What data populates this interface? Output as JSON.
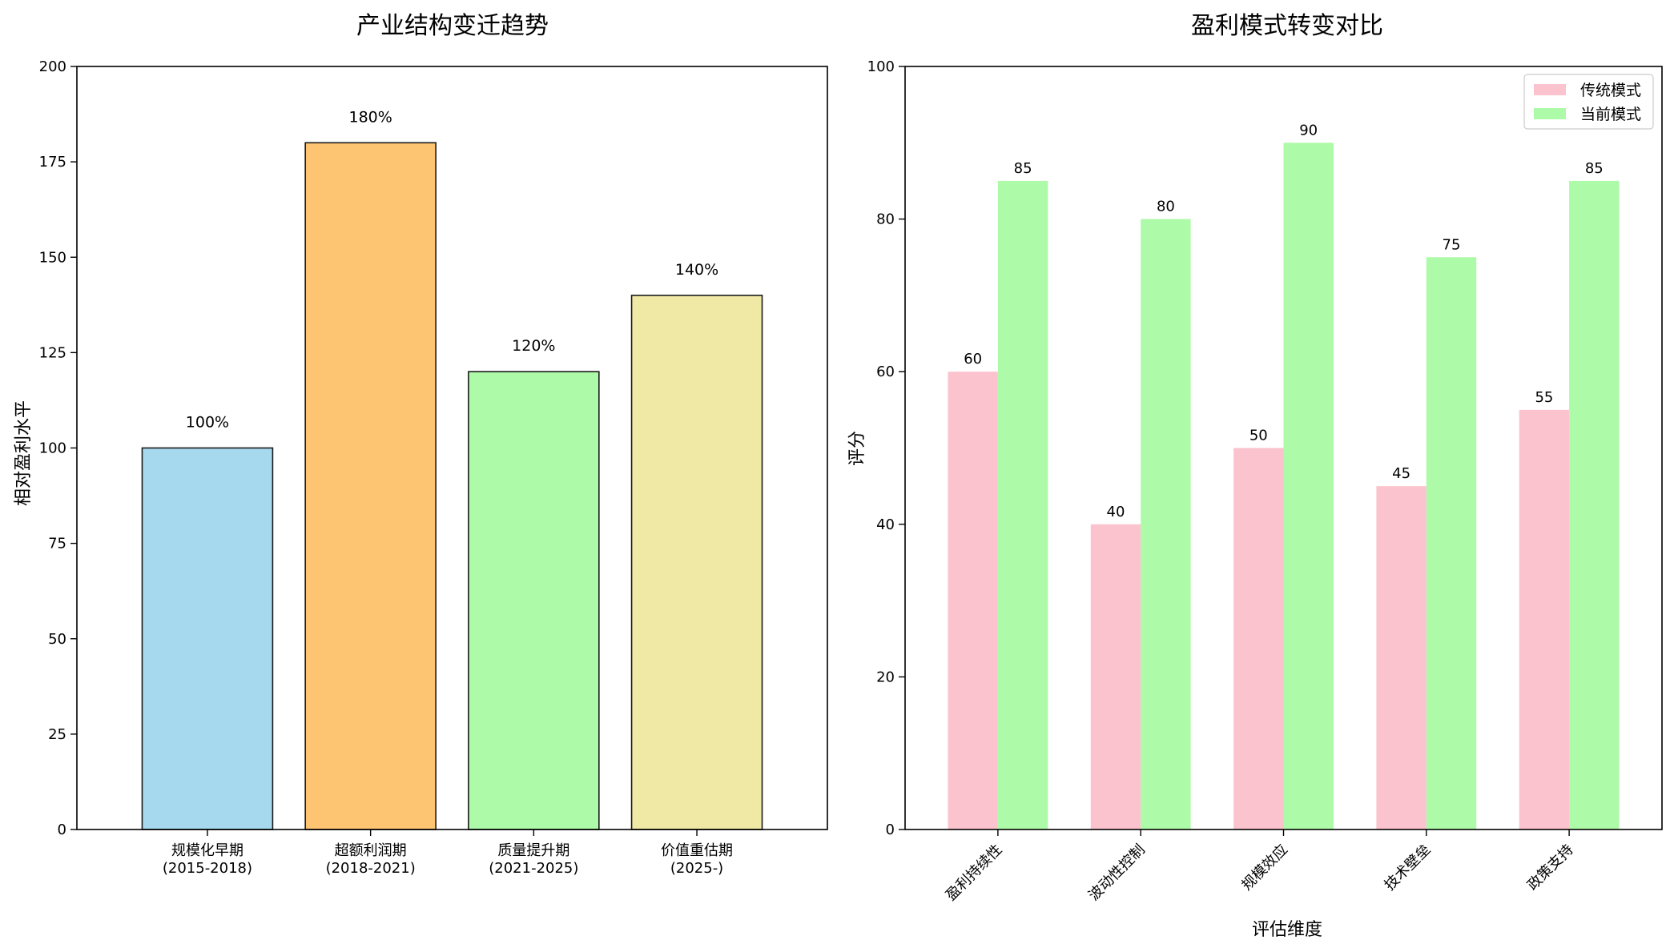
{
  "chart_data": [
    {
      "type": "bar",
      "title": "产业结构变迁趋势",
      "xlabel": "",
      "ylabel": "相对盈利水平",
      "ylim": [
        0,
        200
      ],
      "yticks": [
        0,
        25,
        50,
        75,
        100,
        125,
        150,
        175,
        200
      ],
      "categories": [
        [
          "规模化早期",
          "(2015-2018)"
        ],
        [
          "超额利润期",
          "(2018-2021)"
        ],
        [
          "质量提升期",
          "(2021-2025)"
        ],
        [
          "价值重估期",
          "(2025-)"
        ]
      ],
      "values": [
        100,
        180,
        120,
        140
      ],
      "value_labels": [
        "100%",
        "180%",
        "120%",
        "140%"
      ],
      "colors": [
        "#a6d8ee",
        "#fdc572",
        "#adfaa8",
        "#f0e8a5"
      ],
      "grid": false
    },
    {
      "type": "bar",
      "title": "盈利模式转变对比",
      "xlabel": "评估维度",
      "ylabel": "评分",
      "ylim": [
        0,
        100
      ],
      "yticks": [
        0,
        20,
        40,
        60,
        80,
        100
      ],
      "categories": [
        "盈利持续性",
        "波动性控制",
        "规模效应",
        "技术壁垒",
        "政策支持"
      ],
      "series": [
        {
          "name": "传统模式",
          "values": [
            60,
            40,
            50,
            45,
            55
          ],
          "color": "#fbc3ce"
        },
        {
          "name": "当前模式",
          "values": [
            85,
            80,
            90,
            75,
            85
          ],
          "color": "#adfaa8"
        }
      ],
      "legend_position": "top-right",
      "grid": false
    }
  ]
}
